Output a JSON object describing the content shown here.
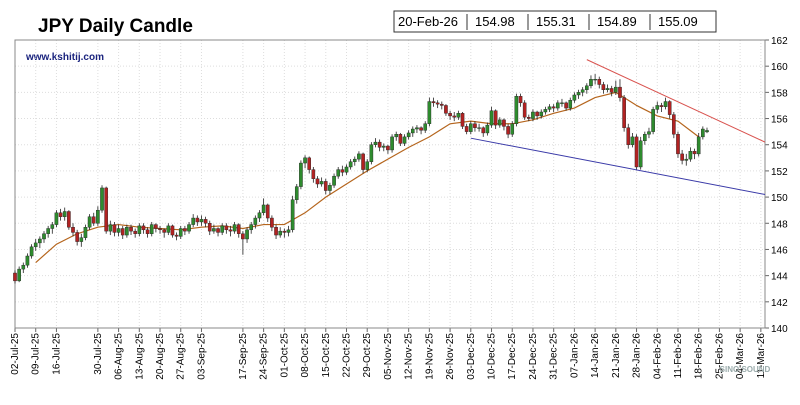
{
  "chart_data": {
    "type": "candlestick",
    "title": "JPY Daily Candle",
    "subtitle": "www.kshitij.com",
    "watermark": "SINO SOUND",
    "info_box": {
      "date": "20-Feb-26",
      "values": [
        154.98,
        155.31,
        154.89,
        155.09
      ]
    },
    "up_color": "#2e8b2e",
    "down_color": "#b22222",
    "grid": true,
    "xlim": [
      0,
      181
    ],
    "xticks": [
      {
        "value": 0,
        "label": "02-Jul-25"
      },
      {
        "value": 5,
        "label": "09-Jul-25"
      },
      {
        "value": 10,
        "label": "16-Jul-25"
      },
      {
        "value": 20,
        "label": "30-Jul-25"
      },
      {
        "value": 25,
        "label": "06-Aug-25"
      },
      {
        "value": 30,
        "label": "13-Aug-25"
      },
      {
        "value": 35,
        "label": "20-Aug-25"
      },
      {
        "value": 40,
        "label": "27-Aug-25"
      },
      {
        "value": 45,
        "label": "03-Sep-25"
      },
      {
        "value": 55,
        "label": "17-Sep-25"
      },
      {
        "value": 60,
        "label": "24-Sep-25"
      },
      {
        "value": 65,
        "label": "01-Oct-25"
      },
      {
        "value": 70,
        "label": "08-Oct-25"
      },
      {
        "value": 75,
        "label": "15-Oct-25"
      },
      {
        "value": 80,
        "label": "22-Oct-25"
      },
      {
        "value": 85,
        "label": "29-Oct-25"
      },
      {
        "value": 90,
        "label": "05-Nov-25"
      },
      {
        "value": 95,
        "label": "12-Nov-25"
      },
      {
        "value": 100,
        "label": "19-Nov-25"
      },
      {
        "value": 105,
        "label": "26-Nov-25"
      },
      {
        "value": 110,
        "label": "03-Dec-25"
      },
      {
        "value": 115,
        "label": "10-Dec-25"
      },
      {
        "value": 120,
        "label": "17-Dec-25"
      },
      {
        "value": 125,
        "label": "24-Dec-25"
      },
      {
        "value": 130,
        "label": "31-Dec-25"
      },
      {
        "value": 135,
        "label": "07-Jan-26"
      },
      {
        "value": 140,
        "label": "14-Jan-26"
      },
      {
        "value": 145,
        "label": "21-Jan-26"
      },
      {
        "value": 150,
        "label": "28-Jan-26"
      },
      {
        "value": 155,
        "label": "04-Feb-26"
      },
      {
        "value": 160,
        "label": "11-Feb-26"
      },
      {
        "value": 165,
        "label": "18-Feb-26"
      },
      {
        "value": 170,
        "label": "25-Feb-26"
      },
      {
        "value": 175,
        "label": "04-Mar-26"
      },
      {
        "value": 180,
        "label": "11-Mar-26"
      }
    ],
    "ylim": [
      140,
      162
    ],
    "yticks": [
      140,
      142,
      144,
      146,
      148,
      150,
      152,
      154,
      156,
      158,
      160,
      162
    ],
    "candles": [
      [
        144.2,
        144.4,
        143.4,
        143.6
      ],
      [
        143.6,
        144.7,
        143.5,
        144.5
      ],
      [
        144.5,
        145.0,
        144.2,
        144.8
      ],
      [
        144.8,
        145.7,
        144.6,
        145.5
      ],
      [
        145.5,
        146.4,
        145.3,
        146.2
      ],
      [
        146.2,
        146.8,
        145.9,
        146.5
      ],
      [
        146.5,
        147.0,
        146.1,
        146.8
      ],
      [
        146.8,
        147.4,
        146.5,
        147.2
      ],
      [
        147.2,
        147.8,
        146.9,
        147.6
      ],
      [
        147.6,
        148.1,
        147.2,
        147.9
      ],
      [
        147.9,
        149.0,
        147.7,
        148.8
      ],
      [
        148.8,
        149.1,
        148.2,
        148.5
      ],
      [
        148.5,
        149.2,
        148.2,
        148.9
      ],
      [
        148.9,
        149.0,
        147.5,
        147.7
      ],
      [
        147.7,
        148.0,
        147.0,
        147.3
      ],
      [
        147.3,
        147.5,
        146.3,
        146.6
      ],
      [
        146.6,
        147.2,
        146.2,
        146.9
      ],
      [
        146.9,
        147.9,
        146.7,
        147.7
      ],
      [
        147.7,
        148.7,
        147.5,
        148.5
      ],
      [
        148.5,
        148.8,
        147.8,
        148.0
      ],
      [
        148.0,
        149.3,
        147.8,
        149.0
      ],
      [
        149.0,
        150.9,
        148.8,
        150.7
      ],
      [
        150.7,
        150.8,
        147.2,
        147.4
      ],
      [
        147.4,
        148.2,
        147.1,
        147.9
      ],
      [
        147.9,
        148.1,
        147.0,
        147.3
      ],
      [
        147.3,
        147.9,
        147.0,
        147.6
      ],
      [
        147.6,
        147.8,
        146.8,
        147.1
      ],
      [
        147.1,
        147.9,
        146.9,
        147.7
      ],
      [
        147.7,
        147.9,
        147.1,
        147.4
      ],
      [
        147.4,
        147.6,
        146.9,
        147.2
      ],
      [
        147.2,
        148.0,
        147.0,
        147.8
      ],
      [
        147.8,
        148.0,
        147.2,
        147.5
      ],
      [
        147.5,
        147.7,
        146.9,
        147.2
      ],
      [
        147.2,
        148.1,
        147.0,
        147.9
      ],
      [
        147.9,
        148.0,
        147.3,
        147.6
      ],
      [
        147.6,
        147.8,
        147.2,
        147.5
      ],
      [
        147.5,
        147.6,
        146.9,
        147.3
      ],
      [
        147.3,
        148.0,
        147.1,
        147.8
      ],
      [
        147.8,
        147.9,
        146.9,
        147.1
      ],
      [
        147.1,
        147.3,
        146.7,
        147.0
      ],
      [
        147.0,
        147.8,
        146.8,
        147.6
      ],
      [
        147.6,
        147.8,
        147.1,
        147.4
      ],
      [
        147.4,
        148.1,
        147.2,
        147.9
      ],
      [
        147.9,
        148.7,
        147.7,
        148.4
      ],
      [
        148.4,
        148.6,
        147.8,
        148.1
      ],
      [
        148.1,
        148.6,
        147.8,
        148.3
      ],
      [
        148.3,
        148.5,
        147.7,
        148.0
      ],
      [
        148.0,
        148.2,
        147.1,
        147.4
      ],
      [
        147.4,
        147.9,
        147.2,
        147.6
      ],
      [
        147.6,
        147.7,
        147.0,
        147.3
      ],
      [
        147.3,
        148.0,
        147.1,
        147.8
      ],
      [
        147.8,
        148.0,
        147.2,
        147.5
      ],
      [
        147.5,
        147.8,
        147.0,
        147.4
      ],
      [
        147.4,
        148.1,
        147.2,
        147.9
      ],
      [
        147.9,
        148.0,
        146.9,
        147.2
      ],
      [
        147.2,
        147.4,
        145.6,
        146.8
      ],
      [
        146.8,
        147.7,
        146.5,
        147.5
      ],
      [
        147.5,
        148.1,
        147.2,
        147.9
      ],
      [
        147.9,
        148.6,
        147.6,
        148.4
      ],
      [
        148.4,
        149.0,
        148.1,
        148.8
      ],
      [
        148.8,
        149.9,
        148.6,
        149.4
      ],
      [
        149.4,
        149.5,
        148.1,
        148.4
      ],
      [
        148.4,
        148.6,
        147.4,
        147.7
      ],
      [
        147.7,
        147.9,
        146.8,
        147.1
      ],
      [
        147.1,
        147.7,
        146.9,
        147.4
      ],
      [
        147.4,
        147.6,
        146.9,
        147.3
      ],
      [
        147.3,
        147.8,
        147.0,
        147.5
      ],
      [
        147.5,
        150.1,
        147.3,
        149.8
      ],
      [
        149.8,
        151.0,
        149.5,
        150.8
      ],
      [
        150.8,
        152.8,
        150.6,
        152.6
      ],
      [
        152.6,
        153.2,
        152.2,
        153.0
      ],
      [
        153.0,
        153.1,
        151.8,
        152.1
      ],
      [
        152.1,
        152.3,
        151.1,
        151.4
      ],
      [
        151.4,
        151.6,
        150.7,
        151.0
      ],
      [
        151.0,
        151.5,
        150.8,
        151.2
      ],
      [
        151.2,
        151.4,
        150.2,
        150.5
      ],
      [
        150.5,
        151.1,
        150.2,
        150.9
      ],
      [
        150.9,
        151.8,
        150.7,
        151.6
      ],
      [
        151.6,
        152.3,
        151.4,
        152.1
      ],
      [
        152.1,
        152.4,
        151.6,
        151.9
      ],
      [
        151.9,
        152.5,
        151.7,
        152.3
      ],
      [
        152.3,
        152.9,
        152.1,
        152.7
      ],
      [
        152.7,
        153.1,
        152.4,
        152.9
      ],
      [
        152.9,
        153.5,
        152.7,
        153.3
      ],
      [
        153.3,
        153.4,
        151.8,
        152.1
      ],
      [
        152.1,
        152.9,
        151.9,
        152.7
      ],
      [
        152.7,
        154.2,
        152.5,
        154.0
      ],
      [
        154.0,
        154.5,
        153.8,
        154.2
      ],
      [
        154.2,
        154.4,
        153.5,
        153.8
      ],
      [
        153.8,
        154.1,
        153.5,
        153.9
      ],
      [
        153.9,
        154.0,
        153.3,
        153.6
      ],
      [
        153.6,
        154.8,
        153.4,
        154.6
      ],
      [
        154.6,
        155.0,
        154.3,
        154.8
      ],
      [
        154.8,
        154.9,
        153.9,
        154.1
      ],
      [
        154.1,
        154.8,
        153.9,
        154.6
      ],
      [
        154.6,
        155.1,
        154.4,
        154.9
      ],
      [
        154.9,
        155.4,
        154.6,
        155.2
      ],
      [
        155.2,
        155.5,
        154.9,
        155.3
      ],
      [
        155.3,
        155.4,
        154.8,
        155.1
      ],
      [
        155.1,
        155.8,
        154.9,
        155.6
      ],
      [
        155.6,
        157.6,
        155.4,
        157.3
      ],
      [
        157.3,
        157.6,
        156.9,
        157.2
      ],
      [
        157.2,
        157.4,
        156.8,
        157.1
      ],
      [
        157.1,
        157.3,
        156.7,
        157.0
      ],
      [
        157.0,
        157.1,
        156.2,
        156.4
      ],
      [
        156.4,
        156.6,
        155.9,
        156.2
      ],
      [
        156.2,
        156.5,
        155.8,
        156.1
      ],
      [
        156.1,
        156.6,
        155.9,
        156.4
      ],
      [
        156.4,
        156.5,
        155.2,
        155.4
      ],
      [
        155.4,
        155.6,
        154.8,
        155.0
      ],
      [
        155.0,
        155.8,
        154.8,
        155.6
      ],
      [
        155.6,
        155.8,
        155.0,
        155.3
      ],
      [
        155.3,
        155.6,
        155.0,
        155.3
      ],
      [
        155.3,
        155.4,
        154.6,
        154.9
      ],
      [
        154.9,
        155.7,
        154.7,
        155.5
      ],
      [
        155.5,
        156.9,
        155.3,
        156.6
      ],
      [
        156.6,
        156.7,
        155.2,
        155.5
      ],
      [
        155.5,
        156.1,
        155.3,
        155.9
      ],
      [
        155.9,
        156.0,
        155.1,
        155.4
      ],
      [
        155.4,
        155.6,
        154.5,
        154.8
      ],
      [
        154.8,
        155.8,
        154.6,
        155.6
      ],
      [
        155.6,
        157.9,
        155.4,
        157.7
      ],
      [
        157.7,
        157.9,
        156.9,
        157.2
      ],
      [
        157.2,
        157.4,
        155.9,
        156.1
      ],
      [
        156.1,
        156.3,
        155.8,
        156.0
      ],
      [
        156.0,
        156.7,
        155.8,
        156.5
      ],
      [
        156.5,
        156.6,
        155.9,
        156.2
      ],
      [
        156.2,
        156.7,
        156.0,
        156.5
      ],
      [
        156.5,
        156.9,
        156.3,
        156.7
      ],
      [
        156.7,
        157.1,
        156.5,
        156.9
      ],
      [
        156.9,
        157.1,
        156.5,
        156.8
      ],
      [
        156.8,
        157.4,
        156.6,
        157.2
      ],
      [
        157.2,
        157.5,
        156.9,
        157.2
      ],
      [
        157.2,
        157.3,
        156.6,
        156.8
      ],
      [
        156.8,
        157.6,
        156.6,
        157.4
      ],
      [
        157.4,
        158.0,
        157.2,
        157.8
      ],
      [
        157.8,
        158.2,
        157.5,
        158.0
      ],
      [
        158.0,
        158.4,
        157.7,
        158.2
      ],
      [
        158.2,
        158.7,
        157.9,
        158.5
      ],
      [
        158.5,
        159.3,
        158.3,
        159.0
      ],
      [
        159.0,
        159.4,
        158.6,
        159.0
      ],
      [
        159.0,
        159.2,
        158.3,
        158.6
      ],
      [
        158.6,
        158.8,
        157.9,
        158.2
      ],
      [
        158.2,
        158.6,
        158.0,
        158.3
      ],
      [
        158.3,
        158.5,
        157.7,
        158.0
      ],
      [
        158.0,
        158.9,
        157.8,
        158.4
      ],
      [
        158.4,
        159.0,
        157.3,
        157.6
      ],
      [
        157.6,
        157.8,
        155.0,
        155.3
      ],
      [
        155.3,
        155.6,
        153.7,
        154.0
      ],
      [
        154.0,
        154.9,
        153.8,
        154.6
      ],
      [
        154.6,
        154.8,
        152.1,
        152.3
      ],
      [
        152.3,
        154.6,
        152.1,
        154.3
      ],
      [
        154.3,
        155.0,
        154.0,
        154.8
      ],
      [
        154.8,
        155.3,
        154.5,
        155.0
      ],
      [
        155.0,
        156.9,
        154.8,
        156.7
      ],
      [
        156.7,
        157.3,
        156.4,
        157.0
      ],
      [
        157.0,
        157.2,
        156.5,
        156.9
      ],
      [
        156.9,
        157.6,
        156.7,
        157.3
      ],
      [
        157.3,
        157.4,
        156.0,
        156.3
      ],
      [
        156.3,
        156.5,
        154.5,
        154.8
      ],
      [
        154.8,
        155.0,
        153.0,
        153.3
      ],
      [
        153.3,
        153.6,
        152.5,
        152.8
      ],
      [
        152.8,
        153.3,
        152.4,
        152.9
      ],
      [
        152.9,
        153.8,
        152.7,
        153.5
      ],
      [
        153.5,
        153.7,
        152.9,
        153.3
      ],
      [
        153.3,
        154.9,
        153.1,
        154.6
      ],
      [
        154.6,
        155.4,
        154.4,
        155.2
      ],
      [
        154.98,
        155.31,
        154.89,
        155.09
      ]
    ],
    "moving_average": {
      "color": "#b5651d",
      "x": [
        5,
        10,
        15,
        20,
        25,
        30,
        35,
        40,
        45,
        50,
        55,
        60,
        65,
        70,
        75,
        80,
        85,
        90,
        95,
        100,
        105,
        110,
        115,
        120,
        125,
        130,
        135,
        140,
        145,
        150,
        155,
        160,
        165
      ],
      "values": [
        145.0,
        146.4,
        147.2,
        147.7,
        147.9,
        147.7,
        147.6,
        147.5,
        147.7,
        147.8,
        147.6,
        147.9,
        147.9,
        148.8,
        150.0,
        151.0,
        152.0,
        152.9,
        153.8,
        154.6,
        155.6,
        155.8,
        155.6,
        155.6,
        155.9,
        156.4,
        156.8,
        157.6,
        158.0,
        157.0,
        156.2,
        155.8,
        154.6
      ]
    },
    "trendlines": [
      {
        "color": "#d9534f",
        "x": [
          138,
          181
        ],
        "values": [
          160.5,
          154.2
        ]
      },
      {
        "color": "#3a3aa8",
        "x": [
          110,
          181
        ],
        "values": [
          154.5,
          150.2
        ]
      }
    ]
  }
}
